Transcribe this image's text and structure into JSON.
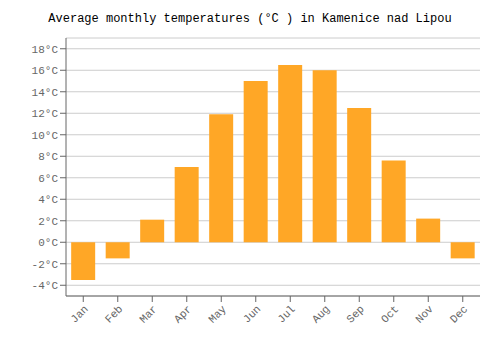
{
  "chart_data": {
    "type": "bar",
    "title": "Average monthly temperatures (°C ) in Kamenice nad Lipou",
    "categories": [
      "Jan",
      "Feb",
      "Mar",
      "Apr",
      "May",
      "Jun",
      "Jul",
      "Aug",
      "Sep",
      "Oct",
      "Nov",
      "Dec"
    ],
    "values": [
      -3.5,
      -1.5,
      2.1,
      7.0,
      11.9,
      15.0,
      16.5,
      16.0,
      12.5,
      7.6,
      2.2,
      -1.5
    ],
    "color": "#FFA726",
    "ylim": [
      -5,
      19
    ],
    "yticks": [
      {
        "value": -4,
        "label": "-4°C"
      },
      {
        "value": -2,
        "label": "-2°C"
      },
      {
        "value": 0,
        "label": "0°C"
      },
      {
        "value": 2,
        "label": "2°C"
      },
      {
        "value": 4,
        "label": "4°C"
      },
      {
        "value": 6,
        "label": "6°C"
      },
      {
        "value": 8,
        "label": "8°C"
      },
      {
        "value": 10,
        "label": "10°C"
      },
      {
        "value": 12,
        "label": "12°C"
      },
      {
        "value": 14,
        "label": "14°C"
      },
      {
        "value": 16,
        "label": "16°C"
      },
      {
        "value": 18,
        "label": "18°C"
      }
    ],
    "grid": true
  }
}
